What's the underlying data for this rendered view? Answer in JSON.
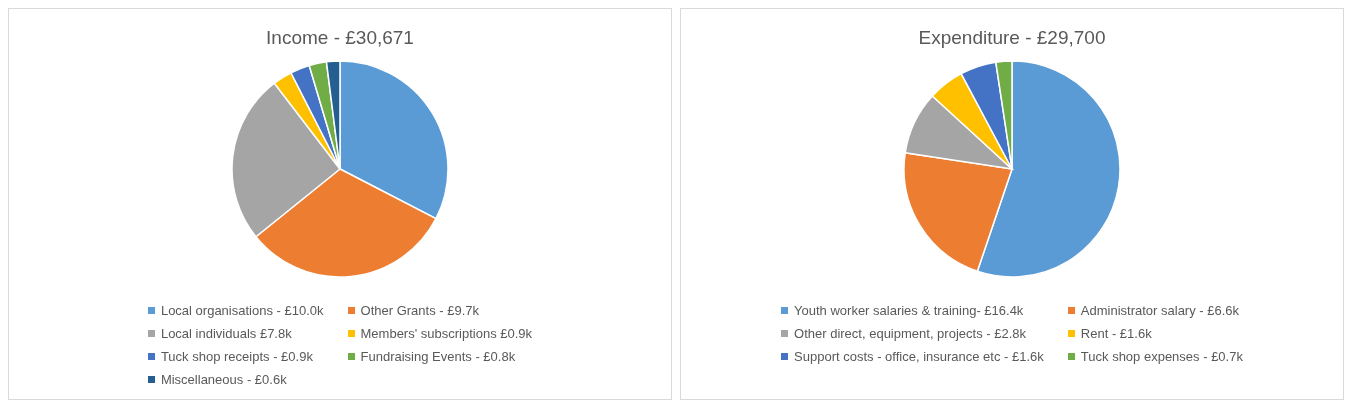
{
  "chart_data": [
    {
      "type": "pie",
      "title": "Income - £30,671",
      "categories": [
        "Local organisations - £10.0k",
        "Other Grants - £9.7k",
        "Local individuals £7.8k",
        "Members' subscriptions £0.9k",
        "Tuck shop receipts - £0.9k",
        "Fundraising Events - £0.8k",
        "Miscellaneous - £0.6k"
      ],
      "values": [
        32.6,
        31.6,
        25.4,
        2.9,
        2.9,
        2.6,
        2.0
      ],
      "colors": [
        "#5b9bd5",
        "#ed7d31",
        "#a5a5a5",
        "#ffc000",
        "#4472c4",
        "#70ad47",
        "#255e91"
      ],
      "legend": "bottom"
    },
    {
      "type": "pie",
      "title": "Expenditure - £29,700",
      "categories": [
        "Youth worker salaries & training- £16.4k",
        "Administrator salary - £6.6k",
        "Other direct, equipment, projects - £2.8k",
        "Rent - £1.6k",
        "Support costs - office, insurance etc - £1.6k",
        "Tuck shop expenses - £0.7k"
      ],
      "values": [
        55.2,
        22.2,
        9.4,
        5.4,
        5.4,
        2.4
      ],
      "colors": [
        "#5b9bd5",
        "#ed7d31",
        "#a5a5a5",
        "#ffc000",
        "#4472c4",
        "#70ad47"
      ],
      "legend": "bottom"
    }
  ]
}
